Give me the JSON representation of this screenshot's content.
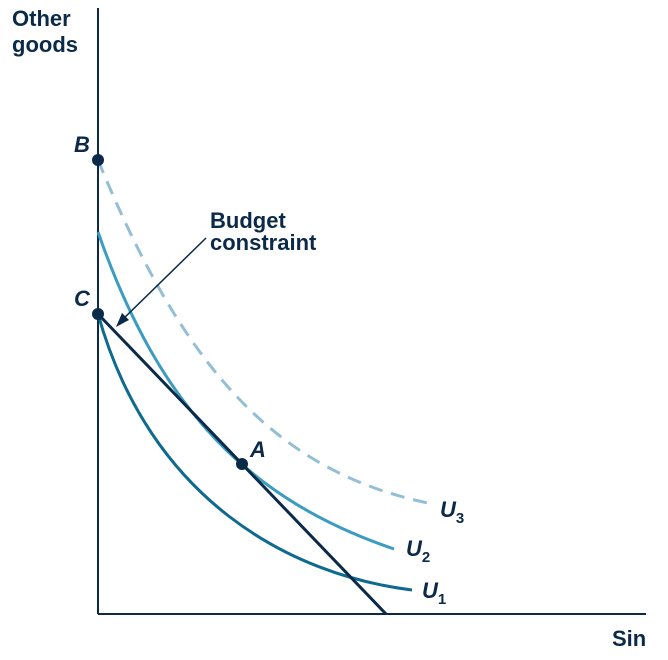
{
  "axes": {
    "y_label_line1": "Other",
    "y_label_line2": "goods",
    "x_label": "Sin"
  },
  "points": {
    "b": "B",
    "c": "C",
    "a": "A"
  },
  "callout": {
    "line1": "Budget",
    "line2": "constraint"
  },
  "curves": {
    "u3": {
      "letter": "U",
      "sub": "3"
    },
    "u2": {
      "letter": "U",
      "sub": "2"
    },
    "u1": {
      "letter": "U",
      "sub": "1"
    }
  },
  "colors": {
    "axis": "#0b2a4a",
    "budget_line": "#0b2a4a",
    "u1": "#0e6a8e",
    "u2": "#3a9cc0",
    "u3_dashed": "#93bfd6",
    "point": "#0b2a4a"
  }
}
